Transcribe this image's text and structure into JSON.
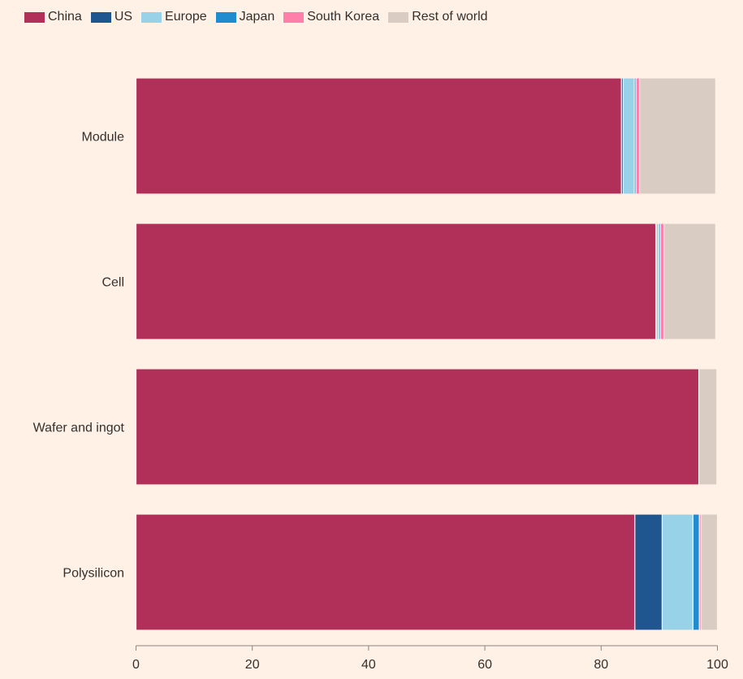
{
  "chart_data": {
    "type": "bar",
    "orientation": "horizontal",
    "stacked": true,
    "title": "",
    "xlabel": "",
    "ylabel": "",
    "xlim": [
      0,
      100
    ],
    "x_ticks": [
      "0",
      "20",
      "40",
      "60",
      "80",
      "100"
    ],
    "x_tick_values": [
      0,
      20,
      40,
      60,
      80,
      100
    ],
    "grid": false,
    "legend_position": "top-left",
    "categories": [
      "Module",
      "Cell",
      "Wafer and ingot",
      "Polysilicon"
    ],
    "series": [
      {
        "name": "China",
        "color": "#b0305a",
        "values": [
          83.5,
          89.4,
          96.8,
          85.8
        ]
      },
      {
        "name": "US",
        "color": "#1f5690",
        "values": [
          0.3,
          0.1,
          0.0,
          4.7
        ]
      },
      {
        "name": "Europe",
        "color": "#97d2e8",
        "values": [
          1.9,
          0.4,
          0.0,
          5.3
        ]
      },
      {
        "name": "Japan",
        "color": "#1f8ccf",
        "values": [
          0.3,
          0.3,
          0.0,
          1.1
        ]
      },
      {
        "name": "South Korea",
        "color": "#ff7faa",
        "values": [
          0.6,
          0.6,
          0.0,
          0.3
        ]
      },
      {
        "name": "Rest of world",
        "color": "#d9ccc3",
        "values": [
          13.1,
          8.9,
          3.1,
          2.8
        ]
      }
    ]
  }
}
